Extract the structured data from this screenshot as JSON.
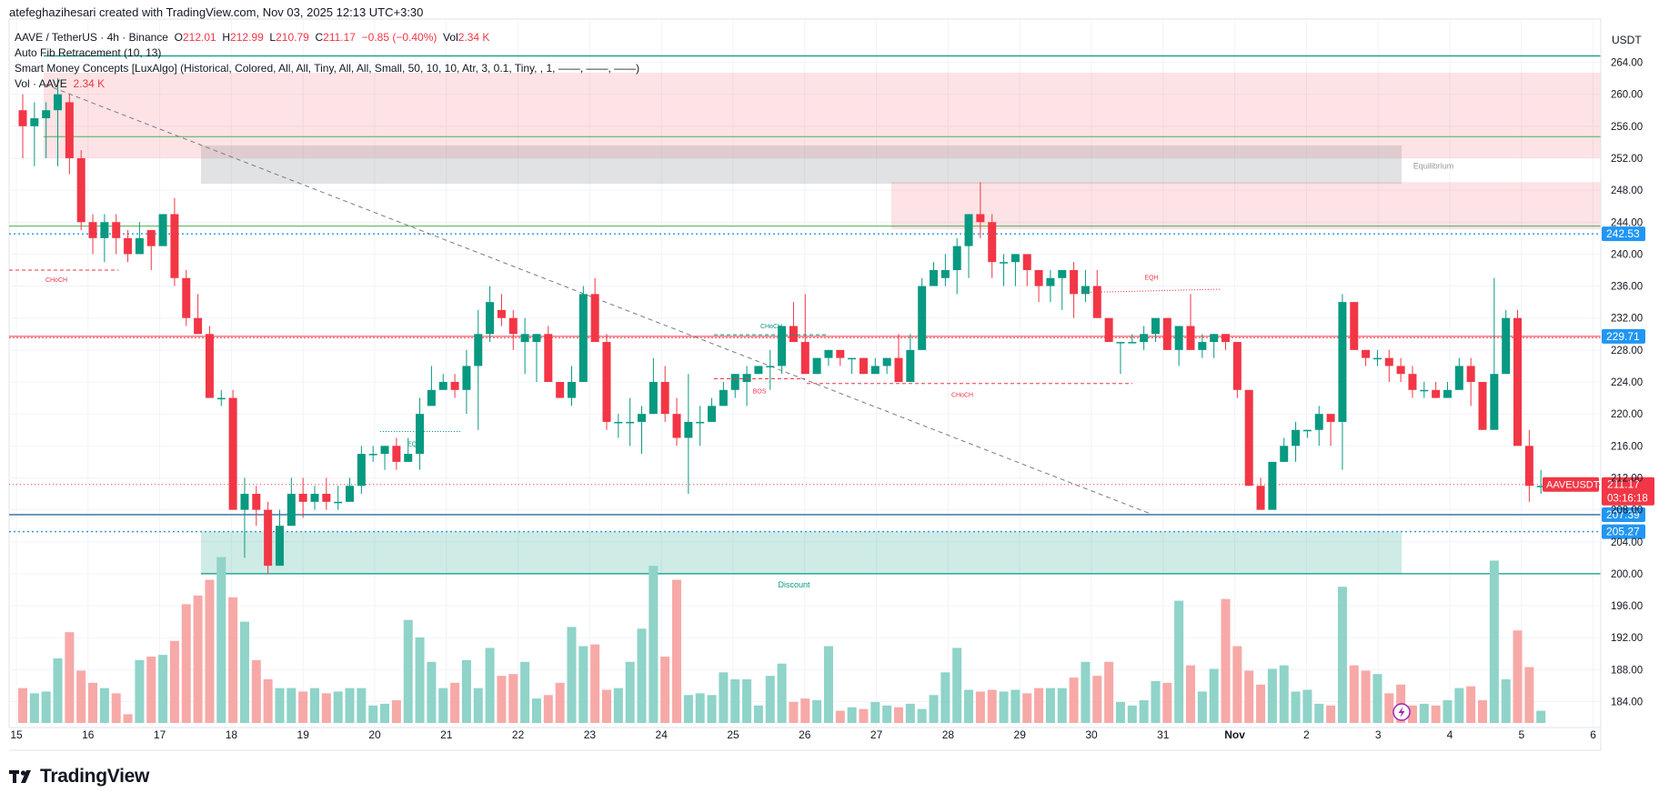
{
  "header": {
    "credit": "atefeghazihesari created with TradingView.com, Nov 03, 2025 12:13 UTC+3:30"
  },
  "legend": {
    "symbol": "AAVE / TetherUS · 4h · Binance",
    "o_label": "O",
    "o": "212.01",
    "h_label": "H",
    "h": "212.99",
    "l_label": "L",
    "l": "210.79",
    "c_label": "C",
    "c": "211.17",
    "change": "−0.85 (−0.40%)",
    "vol_label": "Vol",
    "vol": "2.34 K",
    "fib": "Auto Fib Retracement (10, 13)",
    "smc": "Smart Money Concepts [LuxAlgo] (Historical, Colored, All, All, Tiny, All, All, Small, 50, 10, 10, Atr, 3, 0.1, Tiny, , 1, ——, ——, ——)",
    "vol_ind": "Vol · AAVE",
    "vol_ind_value": "2.34 K"
  },
  "axis": {
    "currency": "USDT",
    "y_ticks": [
      "264.00",
      "260.00",
      "256.00",
      "252.00",
      "248.00",
      "244.00",
      "240.00",
      "236.00",
      "232.00",
      "228.00",
      "224.00",
      "220.00",
      "216.00",
      "212.00",
      "208.00",
      "204.00",
      "200.00",
      "196.00",
      "192.00",
      "188.00",
      "184.00"
    ],
    "x_ticks": [
      "15",
      "16",
      "17",
      "18",
      "19",
      "20",
      "21",
      "22",
      "23",
      "24",
      "25",
      "26",
      "27",
      "28",
      "29",
      "30",
      "31",
      "Nov",
      "2",
      "3",
      "4",
      "5",
      "6"
    ]
  },
  "price_tags": {
    "fib_upper": "242.53",
    "fib_mid": "229.71",
    "symbol_label": "AAVEUSDT",
    "last": "211.17",
    "countdown": "03:16:18",
    "fib_low1": "207.39",
    "fib_low2": "205.27"
  },
  "annotations": {
    "choch1": "CHoCH",
    "eql": "EQL",
    "choch2": "CHoCH",
    "bos": "BOS",
    "choch3": "CHoCH",
    "eqh": "EQH",
    "equilibrium": "Equilibrium",
    "discount": "Discount"
  },
  "brand": {
    "name": "TradingView"
  },
  "colors": {
    "up": "#089981",
    "down": "#f23645",
    "up_vol": "#8fd3c9",
    "down_vol": "#f7a9a7"
  },
  "chart_data": {
    "type": "candlestick",
    "interval": "4h",
    "ylim": [
      182,
      267
    ],
    "x_start": "2025-10-15",
    "candles": [
      [
        258,
        256,
        260,
        252
      ],
      [
        256,
        257,
        259,
        251
      ],
      [
        257,
        258,
        259,
        252
      ],
      [
        258,
        260,
        262,
        251
      ],
      [
        259,
        252,
        260,
        250
      ],
      [
        252,
        244,
        253,
        243
      ],
      [
        244,
        242,
        245,
        240
      ],
      [
        242,
        244,
        245,
        239
      ],
      [
        244,
        242,
        245,
        240
      ],
      [
        242,
        240,
        243,
        239
      ],
      [
        240,
        242,
        244,
        240
      ],
      [
        243,
        241,
        243,
        238
      ],
      [
        241,
        245,
        245,
        241
      ],
      [
        245,
        237,
        247,
        236
      ],
      [
        237,
        232,
        238,
        231
      ],
      [
        232,
        230,
        235,
        230
      ],
      [
        230,
        222,
        231,
        222
      ],
      [
        222,
        222,
        223,
        221
      ],
      [
        222,
        208,
        223,
        208
      ],
      [
        208,
        210,
        212,
        202
      ],
      [
        210,
        208,
        211,
        206
      ],
      [
        208,
        201,
        209,
        200
      ],
      [
        201,
        206,
        208,
        201
      ],
      [
        206,
        210,
        212,
        206
      ],
      [
        210,
        209,
        212,
        207
      ],
      [
        209,
        210,
        211,
        208
      ],
      [
        210,
        209,
        212,
        208
      ],
      [
        209,
        209,
        211,
        208
      ],
      [
        209,
        211,
        212,
        209
      ],
      [
        211,
        215,
        216,
        210
      ],
      [
        215,
        215,
        216,
        214
      ],
      [
        215,
        216,
        216,
        213
      ],
      [
        216,
        214,
        217,
        213
      ],
      [
        214,
        215,
        217,
        214
      ],
      [
        215,
        220,
        222,
        213
      ],
      [
        221,
        223,
        226,
        221
      ],
      [
        223,
        224,
        225,
        223
      ],
      [
        224,
        223,
        225,
        222
      ],
      [
        223,
        226,
        228,
        220
      ],
      [
        226,
        230,
        233,
        218
      ],
      [
        230,
        234,
        236,
        229
      ],
      [
        233,
        232,
        235,
        231
      ],
      [
        232,
        230,
        233,
        228
      ],
      [
        229,
        230,
        232,
        225
      ],
      [
        229,
        230,
        230,
        224
      ],
      [
        230,
        224,
        231,
        224
      ],
      [
        224,
        222,
        224,
        222
      ],
      [
        222,
        224,
        226,
        221
      ],
      [
        224,
        235,
        236,
        224
      ],
      [
        235,
        229,
        237,
        229
      ],
      [
        229,
        219,
        230,
        218
      ],
      [
        219,
        219,
        220,
        217
      ],
      [
        219,
        219,
        222,
        216
      ],
      [
        219,
        220,
        221,
        215
      ],
      [
        220,
        224,
        227,
        220
      ],
      [
        224,
        220,
        226,
        219
      ],
      [
        220,
        217,
        222,
        216
      ],
      [
        217,
        219,
        225,
        210
      ],
      [
        219,
        219,
        221,
        216
      ],
      [
        219,
        221,
        222,
        220
      ],
      [
        221,
        223,
        224,
        221
      ],
      [
        223,
        225,
        224,
        222
      ],
      [
        224,
        225,
        226,
        221
      ],
      [
        225,
        226,
        226,
        225
      ],
      [
        226,
        226,
        228,
        223
      ],
      [
        226,
        231,
        231,
        225
      ],
      [
        231,
        229,
        234,
        229
      ],
      [
        229,
        225,
        235,
        226
      ],
      [
        225,
        227,
        227,
        225
      ],
      [
        227,
        228,
        228,
        226
      ],
      [
        228,
        227,
        228,
        226
      ],
      [
        227,
        227,
        227,
        225
      ],
      [
        227,
        225,
        227,
        225
      ],
      [
        225,
        226,
        227,
        225
      ],
      [
        226,
        227,
        227,
        225
      ],
      [
        227,
        224,
        230,
        224
      ],
      [
        224,
        228,
        230,
        225
      ],
      [
        228,
        236,
        237,
        228
      ],
      [
        236,
        238,
        239,
        236
      ],
      [
        237,
        238,
        240,
        236
      ],
      [
        238,
        241,
        242,
        235
      ],
      [
        241,
        245,
        245,
        237
      ],
      [
        245,
        244,
        249,
        242
      ],
      [
        244,
        239,
        245,
        237
      ],
      [
        239,
        239,
        240,
        236
      ],
      [
        239,
        240,
        240,
        236
      ],
      [
        240,
        238,
        239,
        236
      ],
      [
        238,
        236,
        238,
        234
      ],
      [
        236,
        237,
        238,
        234
      ],
      [
        237,
        238,
        238,
        233
      ],
      [
        238,
        235,
        239,
        232
      ],
      [
        235,
        236,
        238,
        234
      ],
      [
        236,
        232,
        238,
        232
      ],
      [
        232,
        229,
        232,
        229
      ],
      [
        229,
        229,
        229,
        225
      ],
      [
        229,
        229,
        230,
        229
      ],
      [
        229,
        230,
        231,
        228
      ],
      [
        230,
        232,
        232,
        229
      ],
      [
        232,
        228,
        232,
        228
      ],
      [
        228,
        231,
        231,
        226
      ],
      [
        231,
        228,
        235,
        228
      ],
      [
        228,
        229,
        230,
        227
      ],
      [
        229,
        230,
        230,
        227
      ],
      [
        230,
        229,
        230,
        228
      ],
      [
        229,
        223,
        229,
        222
      ],
      [
        223,
        211,
        223,
        211
      ],
      [
        211,
        208,
        212,
        208
      ],
      [
        208,
        214,
        214,
        209
      ],
      [
        214,
        216,
        217,
        214
      ],
      [
        216,
        218,
        219,
        214
      ],
      [
        218,
        218,
        218,
        217
      ],
      [
        218,
        220,
        221,
        216
      ],
      [
        220,
        219,
        220,
        216
      ],
      [
        219,
        234,
        235,
        213
      ],
      [
        234,
        228,
        234,
        228
      ],
      [
        228,
        227,
        228,
        226
      ],
      [
        227,
        227,
        228,
        226
      ],
      [
        227,
        226,
        228,
        224
      ],
      [
        226,
        225,
        227,
        224
      ],
      [
        225,
        223,
        226,
        222
      ],
      [
        223,
        223,
        224,
        222
      ],
      [
        223,
        222,
        224,
        222
      ],
      [
        222,
        223,
        224,
        222
      ],
      [
        223,
        226,
        227,
        223
      ],
      [
        226,
        224,
        227,
        221
      ],
      [
        224,
        218,
        224,
        218
      ],
      [
        218,
        225,
        237,
        219
      ],
      [
        225,
        232,
        233,
        225
      ],
      [
        232,
        216,
        233,
        216
      ],
      [
        216,
        211,
        218,
        209
      ],
      [
        211,
        211,
        213,
        210
      ]
    ],
    "volume_norm": [
      0.2,
      0.17,
      0.18,
      0.37,
      0.52,
      0.3,
      0.23,
      0.2,
      0.17,
      0.05,
      0.36,
      0.38,
      0.39,
      0.47,
      0.68,
      0.73,
      0.82,
      0.95,
      0.72,
      0.58,
      0.36,
      0.25,
      0.2,
      0.2,
      0.18,
      0.2,
      0.17,
      0.18,
      0.2,
      0.2,
      0.1,
      0.11,
      0.13,
      0.59,
      0.49,
      0.35,
      0.2,
      0.23,
      0.36,
      0.2,
      0.43,
      0.27,
      0.28,
      0.35,
      0.14,
      0.16,
      0.23,
      0.55,
      0.44,
      0.45,
      0.19,
      0.2,
      0.35,
      0.54,
      0.9,
      0.38,
      0.82,
      0.16,
      0.17,
      0.16,
      0.29,
      0.25,
      0.25,
      0.1,
      0.27,
      0.34,
      0.12,
      0.14,
      0.13,
      0.44,
      0.07,
      0.09,
      0.08,
      0.12,
      0.1,
      0.09,
      0.11,
      0.08,
      0.16,
      0.29,
      0.43,
      0.19,
      0.18,
      0.19,
      0.18,
      0.19,
      0.17,
      0.2,
      0.2,
      0.2,
      0.26,
      0.35,
      0.27,
      0.35,
      0.12,
      0.1,
      0.13,
      0.24,
      0.23,
      0.7,
      0.33,
      0.18,
      0.31,
      0.71,
      0.44,
      0.3,
      0.22,
      0.31,
      0.33,
      0.18,
      0.19,
      0.11,
      0.1,
      0.78,
      0.33,
      0.3,
      0.28,
      0.17,
      0.22,
      0.1,
      0.11,
      0.1,
      0.13,
      0.2,
      0.21,
      0.13,
      0.93,
      0.25,
      0.53,
      0.32,
      0.07
    ]
  }
}
